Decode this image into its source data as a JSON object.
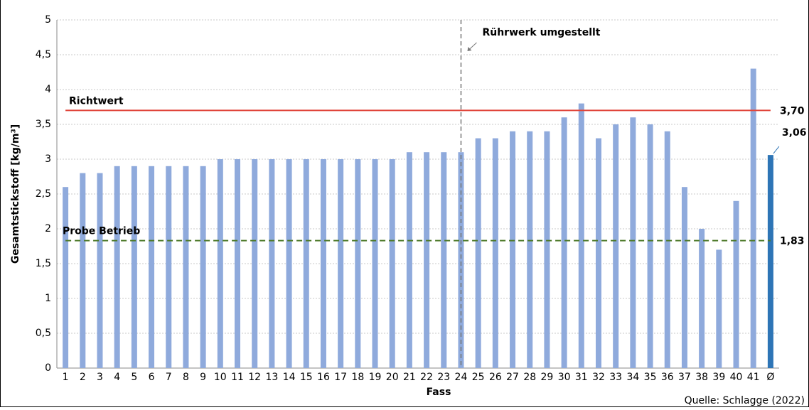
{
  "chart_data": {
    "type": "bar",
    "x_label": "Fass",
    "y_label": "Gesamtstickstoff [kg/m³]",
    "source": "Quelle: Schlagge (2022)",
    "categories": [
      "1",
      "2",
      "3",
      "4",
      "5",
      "6",
      "7",
      "8",
      "9",
      "10",
      "11",
      "12",
      "13",
      "14",
      "15",
      "16",
      "17",
      "18",
      "19",
      "20",
      "21",
      "22",
      "23",
      "24",
      "25",
      "26",
      "27",
      "28",
      "29",
      "30",
      "31",
      "32",
      "33",
      "34",
      "35",
      "36",
      "37",
      "38",
      "39",
      "40",
      "41"
    ],
    "values": [
      2.6,
      2.8,
      2.8,
      2.9,
      2.9,
      2.9,
      2.9,
      2.9,
      2.9,
      3.0,
      3.0,
      3.0,
      3.0,
      3.0,
      3.0,
      3.0,
      3.0,
      3.0,
      3.0,
      3.0,
      3.1,
      3.1,
      3.1,
      3.1,
      3.3,
      3.3,
      3.4,
      3.4,
      3.4,
      3.6,
      3.8,
      3.3,
      3.5,
      3.6,
      3.5,
      3.4,
      2.6,
      2.0,
      1.7,
      2.4,
      4.3
    ],
    "color": "#8faadc",
    "average": {
      "label": "Ø",
      "value": 3.06,
      "value_label": "3,06",
      "color": "#2e75b6"
    },
    "reference_lines": [
      {
        "label": "Richtwert",
        "value": 3.7,
        "value_label": "3,70",
        "color": "#e0453a",
        "style": "solid"
      },
      {
        "label": "Probe Betrieb",
        "value": 1.83,
        "value_label": "1,83",
        "color": "#4e7a2a",
        "style": "dashed"
      }
    ],
    "annotation": {
      "text": "Rührwerk umgestellt",
      "at": "24"
    },
    "ylim": [
      0,
      5
    ],
    "yticks": [
      0,
      {
        "value": 0.5,
        "label": "0,5"
      },
      1,
      {
        "value": 1.5,
        "label": "1,5"
      },
      2,
      {
        "value": 2.5,
        "label": "2,5"
      },
      3,
      {
        "value": 3.5,
        "label": "3,5"
      },
      4,
      {
        "value": 4.5,
        "label": "4,5"
      },
      5
    ],
    "grid": true
  }
}
